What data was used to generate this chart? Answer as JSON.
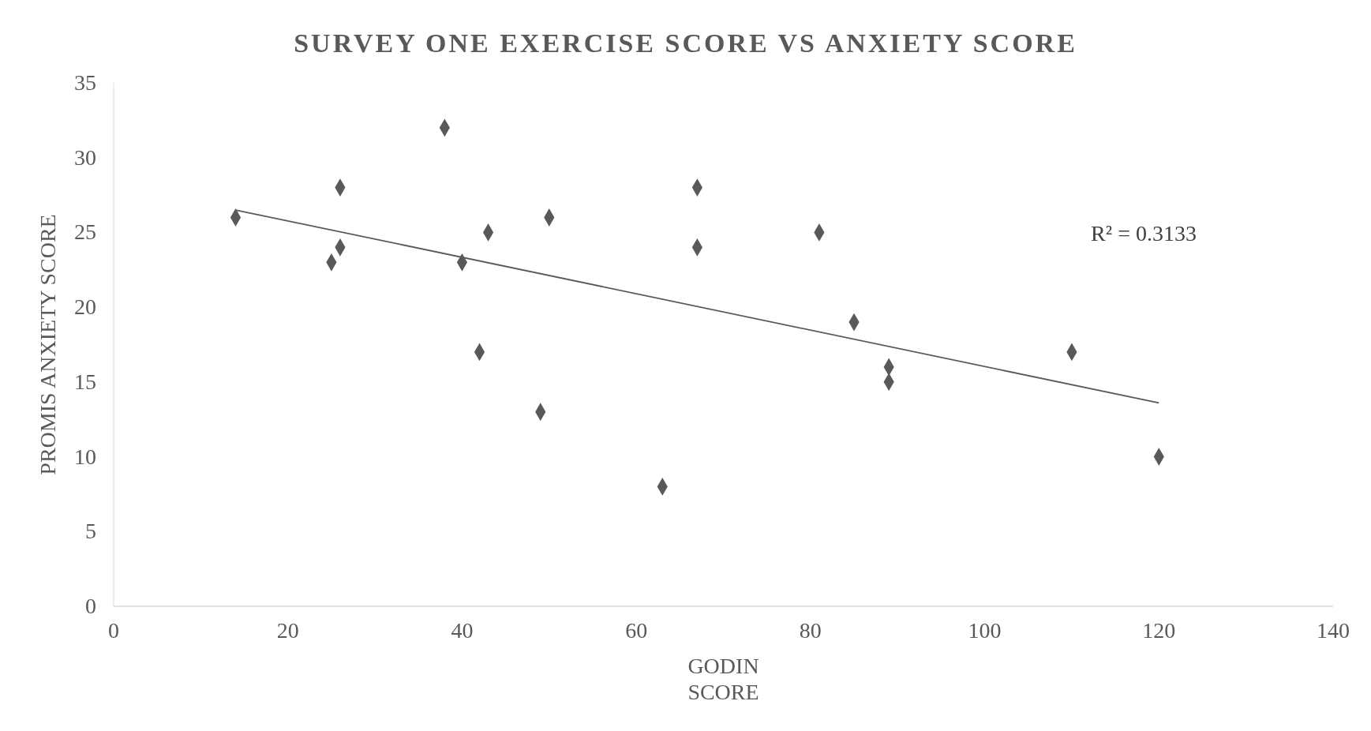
{
  "chart_data": {
    "type": "scatter",
    "title": "SURVEY ONE EXERCISE SCORE VS ANXIETY SCORE",
    "xlabel": "GODIN SCORE",
    "ylabel": "PROMIS ANXIETY SCORE",
    "xlim": [
      0,
      140
    ],
    "xticks": [
      0,
      20,
      40,
      60,
      80,
      100,
      120,
      140
    ],
    "ylim": [
      0,
      35
    ],
    "yticks": [
      0,
      5,
      10,
      15,
      20,
      25,
      30,
      35
    ],
    "marker": "diamond",
    "series": [
      {
        "color": "#595959",
        "x": [
          14,
          25,
          26,
          26,
          38,
          40,
          42,
          43,
          49,
          50,
          63,
          67,
          67,
          81,
          85,
          89,
          89,
          110,
          120
        ],
        "values": [
          26,
          23,
          28,
          24,
          32,
          23,
          17,
          25,
          13,
          26,
          8,
          28,
          24,
          25,
          19,
          16,
          15,
          17,
          10
        ]
      },
      {
        "type": "line",
        "marker": "none",
        "color": "#595959",
        "x": [
          14,
          120
        ],
        "values": [
          26.5,
          13.6
        ]
      }
    ],
    "annotations": [
      "R² = 0.3133"
    ]
  }
}
